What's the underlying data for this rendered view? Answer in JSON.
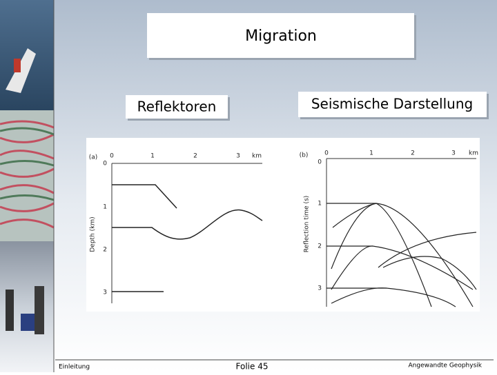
{
  "header": {
    "title": "Migration"
  },
  "labels": {
    "left": "Reflektoren",
    "right": "Seismische Darstellung"
  },
  "figure": {
    "panel_a": {
      "tag": "(a)",
      "xticks": [
        "0",
        "1",
        "2",
        "3"
      ],
      "xunit": "km",
      "yticks": [
        "0",
        "1",
        "2",
        "3"
      ],
      "ylabel": "Depth (km)"
    },
    "panel_b": {
      "tag": "(b)",
      "xticks": [
        "0",
        "1",
        "2",
        "3"
      ],
      "xunit": "km",
      "yticks": [
        "0",
        "1",
        "2",
        "3"
      ],
      "ylabel": "Reflection time (s)"
    }
  },
  "footer": {
    "left": "Einleitung",
    "center": "Folie 45",
    "right": "Angewandte Geophysik"
  }
}
